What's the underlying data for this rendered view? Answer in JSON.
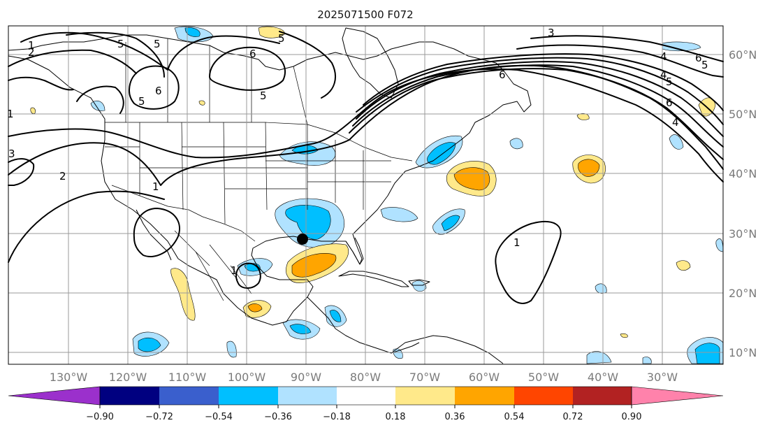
{
  "title": "2025071500 F072",
  "axes": {
    "lon_labels": [
      "130°W",
      "120°W",
      "110°W",
      "100°W",
      "90°W",
      "80°W",
      "70°W",
      "60°W",
      "50°W",
      "40°W",
      "30°W"
    ],
    "lat_labels": [
      "60°N",
      "50°N",
      "40°N",
      "30°N",
      "20°N",
      "10°N"
    ]
  },
  "colorbar": {
    "ticks": [
      "−0.90",
      "−0.72",
      "−0.54",
      "−0.36",
      "−0.18",
      "0.18",
      "0.36",
      "0.54",
      "0.72",
      "0.90"
    ],
    "colors": {
      "under": "#9b30cc",
      "c1": "#000080",
      "c2": "#3a5fcd",
      "c3": "#00bfff",
      "c4": "#b0e2ff",
      "c5": "#ffffff",
      "c6": "#ffe98a",
      "c7": "#ffa500",
      "c8": "#ff4500",
      "c9": "#b22222",
      "over": "#ff82ab"
    }
  },
  "contour_labels": [
    "1",
    "2",
    "3",
    "4",
    "5",
    "6"
  ],
  "marker": "black-dot"
}
